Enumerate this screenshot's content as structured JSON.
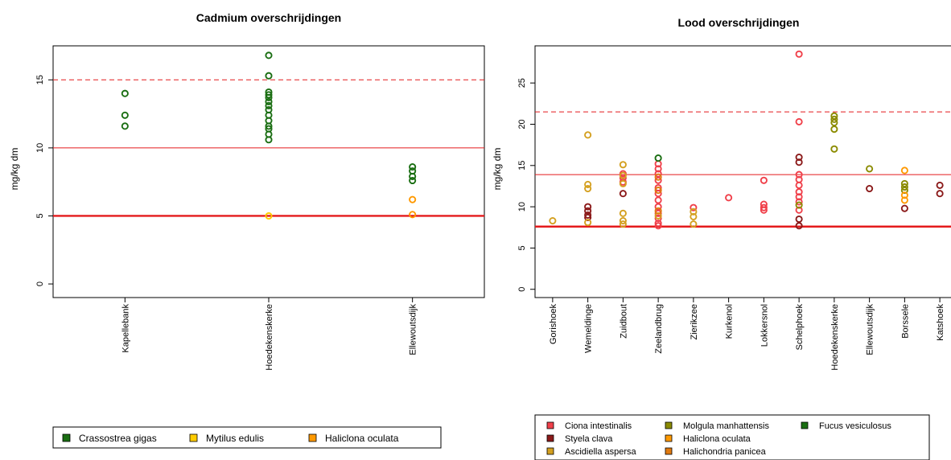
{
  "chart_data": [
    {
      "type": "scatter",
      "title": "Cadmium overschrijdingen",
      "ylabel": "mg/kg dm",
      "xlabel": "",
      "ylim": [
        -1,
        17.5
      ],
      "yticks": [
        0,
        5,
        10,
        15
      ],
      "categories": [
        "Kapellebank",
        "Hoedekenskerke",
        "Ellewoutsdijk"
      ],
      "reference_lines": [
        {
          "value": 15,
          "style": "dashed",
          "color": "#e41a1c"
        },
        {
          "value": 10,
          "style": "solid",
          "color": "#e41a1c"
        },
        {
          "value": 5,
          "style": "bold",
          "color": "#e41a1c"
        }
      ],
      "series": [
        {
          "name": "Crassostrea gigas",
          "color": "#1a6e12",
          "points": [
            {
              "x": "Kapellebank",
              "y": 14.0
            },
            {
              "x": "Kapellebank",
              "y": 12.4
            },
            {
              "x": "Kapellebank",
              "y": 11.6
            },
            {
              "x": "Hoedekenskerke",
              "y": 16.8
            },
            {
              "x": "Hoedekenskerke",
              "y": 15.3
            },
            {
              "x": "Hoedekenskerke",
              "y": 14.1
            },
            {
              "x": "Hoedekenskerke",
              "y": 13.9
            },
            {
              "x": "Hoedekenskerke",
              "y": 13.7
            },
            {
              "x": "Hoedekenskerke",
              "y": 13.4
            },
            {
              "x": "Hoedekenskerke",
              "y": 13.1
            },
            {
              "x": "Hoedekenskerke",
              "y": 12.8
            },
            {
              "x": "Hoedekenskerke",
              "y": 12.4
            },
            {
              "x": "Hoedekenskerke",
              "y": 12.0
            },
            {
              "x": "Hoedekenskerke",
              "y": 11.6
            },
            {
              "x": "Hoedekenskerke",
              "y": 11.4
            },
            {
              "x": "Hoedekenskerke",
              "y": 11.0
            },
            {
              "x": "Hoedekenskerke",
              "y": 10.6
            },
            {
              "x": "Ellewoutsdijk",
              "y": 8.6
            },
            {
              "x": "Ellewoutsdijk",
              "y": 8.3
            },
            {
              "x": "Ellewoutsdijk",
              "y": 7.9
            },
            {
              "x": "Ellewoutsdijk",
              "y": 7.6
            }
          ]
        },
        {
          "name": "Mytilus edulis",
          "color": "#ffcc00",
          "points": [
            {
              "x": "Hoedekenskerke",
              "y": 5.0
            }
          ]
        },
        {
          "name": "Haliclona oculata",
          "color": "#ff9900",
          "points": [
            {
              "x": "Ellewoutsdijk",
              "y": 6.2
            },
            {
              "x": "Ellewoutsdijk",
              "y": 5.1
            }
          ]
        }
      ],
      "legend": "bottom"
    },
    {
      "type": "scatter",
      "title": "Lood overschrijdingen",
      "ylabel": "mg/kg dm",
      "xlabel": "",
      "ylim": [
        -1,
        29.5
      ],
      "yticks": [
        0,
        5,
        10,
        15,
        20,
        25
      ],
      "categories": [
        "Gorishoek",
        "Wemeldinge",
        "Zuidbout",
        "Zeelandbrug",
        "Zierikzee",
        "Kurkenol",
        "Lokkersnol",
        "Schelphoek",
        "Hoedekenskerke",
        "Ellewoutsdijk",
        "Borssele",
        "Katshoek"
      ],
      "reference_lines": [
        {
          "value": 21.5,
          "style": "dashed",
          "color": "#e41a1c"
        },
        {
          "value": 13.9,
          "style": "solid",
          "color": "#e41a1c"
        },
        {
          "value": 7.6,
          "style": "bold",
          "color": "#e41a1c"
        }
      ],
      "series": [
        {
          "name": "Ciona intestinalis",
          "color": "#f0404a",
          "points": [
            {
              "x": "Zuidbout",
              "y": 14.0
            },
            {
              "x": "Zuidbout",
              "y": 13.5
            },
            {
              "x": "Zuidbout",
              "y": 13.0
            },
            {
              "x": "Zeelandbrug",
              "y": 15.2
            },
            {
              "x": "Zeelandbrug",
              "y": 14.6
            },
            {
              "x": "Zeelandbrug",
              "y": 14.0
            },
            {
              "x": "Zeelandbrug",
              "y": 13.2
            },
            {
              "x": "Zeelandbrug",
              "y": 12.3
            },
            {
              "x": "Zeelandbrug",
              "y": 11.6
            },
            {
              "x": "Zeelandbrug",
              "y": 10.8
            },
            {
              "x": "Zeelandbrug",
              "y": 10.0
            },
            {
              "x": "Zeelandbrug",
              "y": 9.2
            },
            {
              "x": "Zeelandbrug",
              "y": 8.6
            },
            {
              "x": "Zeelandbrug",
              "y": 8.0
            },
            {
              "x": "Zeelandbrug",
              "y": 7.7
            },
            {
              "x": "Zierikzee",
              "y": 9.9
            },
            {
              "x": "Kurkenol",
              "y": 11.1
            },
            {
              "x": "Lokkersnol",
              "y": 13.2
            },
            {
              "x": "Lokkersnol",
              "y": 10.3
            },
            {
              "x": "Lokkersnol",
              "y": 9.9
            },
            {
              "x": "Lokkersnol",
              "y": 9.6
            },
            {
              "x": "Schelphoek",
              "y": 28.5
            },
            {
              "x": "Schelphoek",
              "y": 20.3
            },
            {
              "x": "Schelphoek",
              "y": 13.9
            },
            {
              "x": "Schelphoek",
              "y": 13.3
            },
            {
              "x": "Schelphoek",
              "y": 12.6
            },
            {
              "x": "Schelphoek",
              "y": 11.8
            },
            {
              "x": "Schelphoek",
              "y": 11.2
            },
            {
              "x": "Schelphoek",
              "y": 10.6
            },
            {
              "x": "Schelphoek",
              "y": 9.6
            }
          ]
        },
        {
          "name": "Styela clava",
          "color": "#8b1a1a",
          "points": [
            {
              "x": "Wemeldinge",
              "y": 10.0
            },
            {
              "x": "Wemeldinge",
              "y": 9.5
            },
            {
              "x": "Wemeldinge",
              "y": 9.0
            },
            {
              "x": "Wemeldinge",
              "y": 8.7
            },
            {
              "x": "Zuidbout",
              "y": 11.6
            },
            {
              "x": "Schelphoek",
              "y": 16.0
            },
            {
              "x": "Schelphoek",
              "y": 15.4
            },
            {
              "x": "Schelphoek",
              "y": 8.5
            },
            {
              "x": "Schelphoek",
              "y": 7.7
            },
            {
              "x": "Ellewoutsdijk",
              "y": 12.2
            },
            {
              "x": "Borssele",
              "y": 9.8
            },
            {
              "x": "Katshoek",
              "y": 12.6
            },
            {
              "x": "Katshoek",
              "y": 11.6
            }
          ]
        },
        {
          "name": "Ascidiella aspersa",
          "color": "#d4a020",
          "points": [
            {
              "x": "Gorishoek",
              "y": 8.3
            },
            {
              "x": "Wemeldinge",
              "y": 18.7
            },
            {
              "x": "Wemeldinge",
              "y": 12.7
            },
            {
              "x": "Wemeldinge",
              "y": 12.2
            },
            {
              "x": "Wemeldinge",
              "y": 8.1
            },
            {
              "x": "Zuidbout",
              "y": 15.1
            },
            {
              "x": "Zuidbout",
              "y": 13.8
            },
            {
              "x": "Zuidbout",
              "y": 12.8
            },
            {
              "x": "Zuidbout",
              "y": 9.2
            },
            {
              "x": "Zuidbout",
              "y": 8.3
            },
            {
              "x": "Zuidbout",
              "y": 7.9
            },
            {
              "x": "Zierikzee",
              "y": 9.4
            },
            {
              "x": "Zierikzee",
              "y": 8.8
            },
            {
              "x": "Zierikzee",
              "y": 7.9
            },
            {
              "x": "Zeelandbrug",
              "y": 8.9
            }
          ]
        },
        {
          "name": "Molgula manhattensis",
          "color": "#8b8b00",
          "points": [
            {
              "x": "Hoedekenskerke",
              "y": 21.0
            },
            {
              "x": "Hoedekenskerke",
              "y": 20.6
            },
            {
              "x": "Hoedekenskerke",
              "y": 20.2
            },
            {
              "x": "Hoedekenskerke",
              "y": 19.4
            },
            {
              "x": "Hoedekenskerke",
              "y": 17.0
            },
            {
              "x": "Ellewoutsdijk",
              "y": 14.6
            },
            {
              "x": "Borssele",
              "y": 12.8
            },
            {
              "x": "Borssele",
              "y": 12.4
            },
            {
              "x": "Borssele",
              "y": 12.0
            },
            {
              "x": "Schelphoek",
              "y": 10.2
            }
          ]
        },
        {
          "name": "Haliclona oculata",
          "color": "#ff9900",
          "points": [
            {
              "x": "Borssele",
              "y": 14.4
            },
            {
              "x": "Borssele",
              "y": 11.4
            },
            {
              "x": "Borssele",
              "y": 10.8
            }
          ]
        },
        {
          "name": "Halichondria panicea",
          "color": "#e07a10",
          "points": [
            {
              "x": "Zeelandbrug",
              "y": 13.6
            },
            {
              "x": "Zeelandbrug",
              "y": 12.0
            },
            {
              "x": "Zeelandbrug",
              "y": 9.5
            }
          ]
        },
        {
          "name": "Fucus vesiculosus",
          "color": "#1a6e12",
          "points": [
            {
              "x": "Zeelandbrug",
              "y": 15.9
            }
          ]
        }
      ],
      "legend": "bottom"
    }
  ]
}
